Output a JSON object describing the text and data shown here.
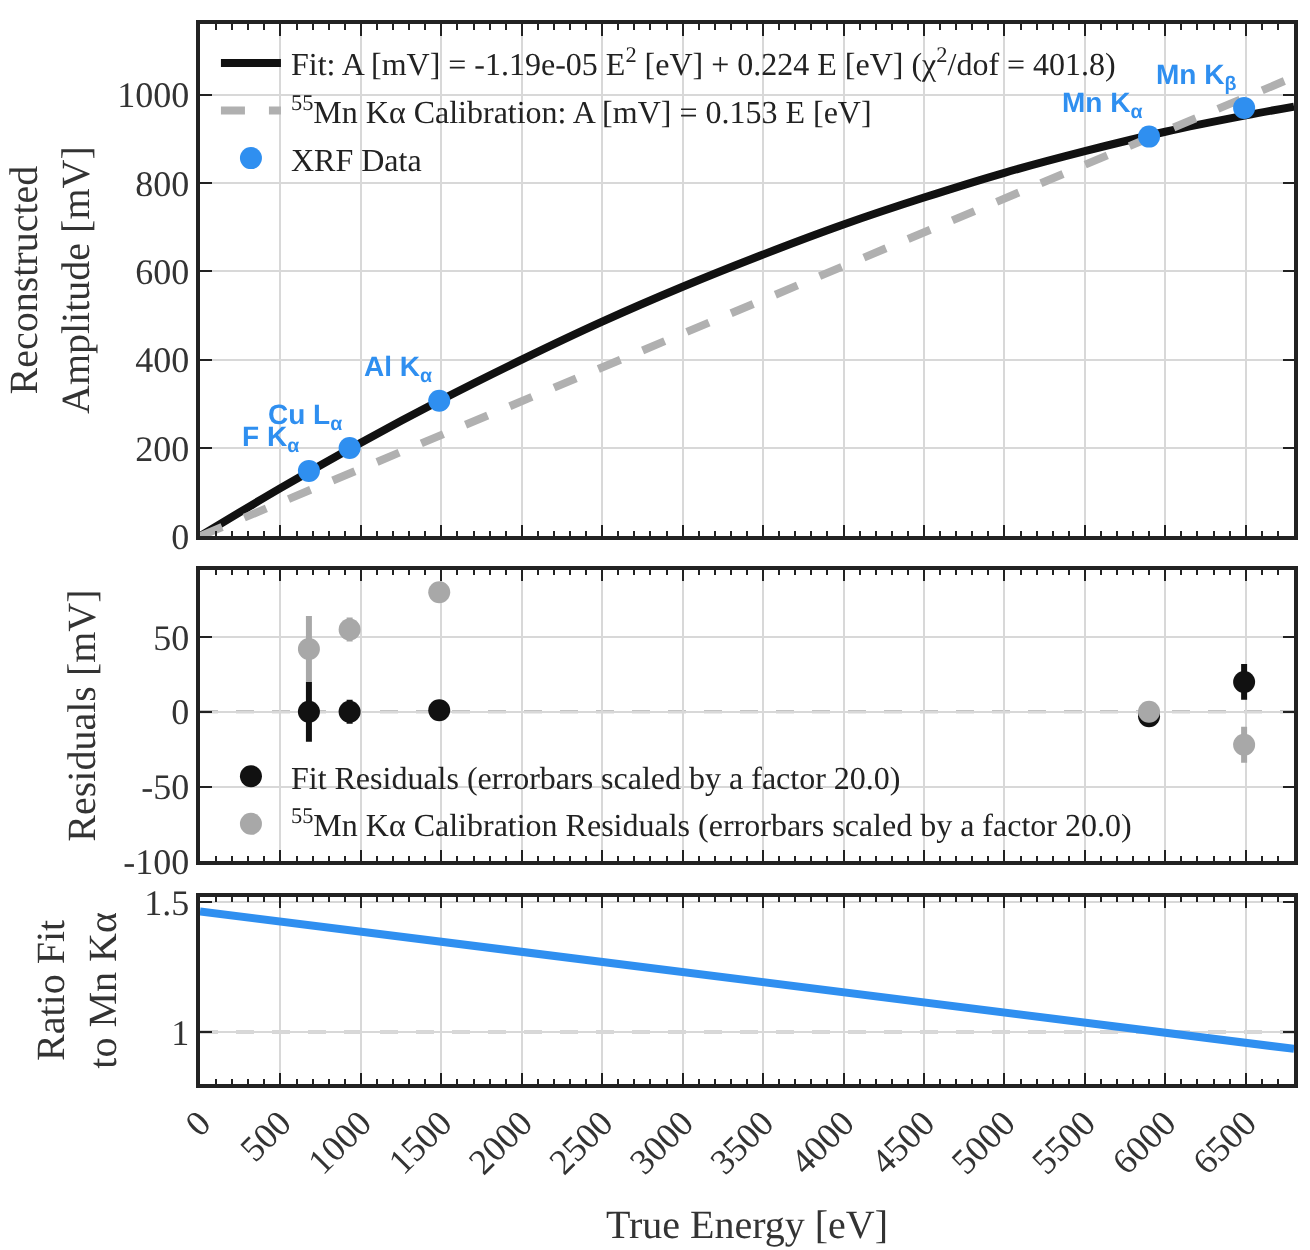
{
  "chart_data": [
    {
      "type": "line",
      "ylabel": "Reconstructed\nAmplitude [mV]",
      "xlim": [
        0,
        6800
      ],
      "xticks": [
        0,
        500,
        1000,
        1500,
        2000,
        2500,
        3000,
        3500,
        4000,
        4500,
        5000,
        5500,
        6000,
        6500
      ],
      "ylim": [
        0,
        1160
      ],
      "yticks": [
        0,
        200,
        400,
        600,
        800,
        1000
      ],
      "tick_labels": "y",
      "grid": true,
      "legend": "top left",
      "series": [
        {
          "name": "Fit: A [mV] = -1.19e-05 E$^{2}$ [eV] + 0.224 E [eV] (χ$^{2}$/dof = 401.8)",
          "type": "line",
          "color": "#111111",
          "line_style": "solid",
          "x": [
            0,
            500,
            1000,
            1500,
            2000,
            2500,
            3000,
            3500,
            4000,
            4500,
            5000,
            5500,
            6000,
            6500,
            6800
          ],
          "values": [
            0,
            109,
            212,
            309,
            400,
            486,
            565,
            638,
            706,
            767,
            823,
            872,
            916,
            953,
            973
          ]
        },
        {
          "name": "$^{55}$Mn Kα Calibration: A [mV] = 0.153 E [eV]",
          "type": "line",
          "color": "#b0b0b0",
          "line_style": "dashed",
          "x": [
            0,
            6800
          ],
          "values": [
            0,
            1040
          ]
        },
        {
          "name": "XRF Data",
          "type": "scatter",
          "color": "#2f8ff0",
          "marker": "circle",
          "x": [
            677,
            930,
            1487,
            5899,
            6490
          ],
          "values": [
            148,
            200,
            307,
            905,
            970
          ]
        }
      ],
      "annotations": [
        {
          "text": "F K$_{α}$",
          "x": 677,
          "y": 148
        },
        {
          "text": "Cu L$_{α}$",
          "x": 930,
          "y": 200
        },
        {
          "text": "Al K$_{α}$",
          "x": 1487,
          "y": 307
        },
        {
          "text": "Mn K$_{α}$",
          "x": 5899,
          "y": 905
        },
        {
          "text": "Mn K$_{β}$",
          "x": 6490,
          "y": 970
        }
      ]
    },
    {
      "type": "scatter",
      "ylabel": "Residuals [mV]",
      "xlim": [
        0,
        6800
      ],
      "xticks": [
        0,
        500,
        1000,
        1500,
        2000,
        2500,
        3000,
        3500,
        4000,
        4500,
        5000,
        5500,
        6000,
        6500
      ],
      "ylim": [
        -100,
        95
      ],
      "yticks": [
        -100,
        -50,
        0,
        50
      ],
      "tick_labels": "y",
      "grid": true,
      "legend": "bottom left",
      "marker": "circle",
      "series": [
        {
          "name": "Fit Residuals (errorbars scaled by a factor 20.0)",
          "color": "#111111",
          "x": [
            677,
            930,
            1487,
            5899,
            6490
          ],
          "values": [
            0,
            0,
            1,
            -3,
            20
          ],
          "errors": [
            20,
            8,
            null,
            null,
            12
          ]
        },
        {
          "name": "$^{55}$Mn Kα Calibration Residuals (errorbars scaled by a factor 20.0)",
          "color": "#a8a8a8",
          "x": [
            677,
            930,
            1487,
            5899,
            6490
          ],
          "values": [
            42,
            55,
            80,
            0,
            -22
          ],
          "errors": [
            22,
            8,
            null,
            null,
            12
          ]
        }
      ],
      "ref_lines": [
        {
          "axis": "y",
          "value": 0,
          "color": "#b0b0b0",
          "line_style": "dashed"
        }
      ]
    },
    {
      "type": "line",
      "xlabel": "True Energy [eV]",
      "ylabel": "Ratio Fit\nto Mn Kα",
      "xlim": [
        0,
        6800
      ],
      "xticks": [
        0,
        500,
        1000,
        1500,
        2000,
        2500,
        3000,
        3500,
        4000,
        4500,
        5000,
        5500,
        6000,
        6500
      ],
      "ylim": [
        0.8,
        1.52
      ],
      "yticks": [
        1,
        1.5
      ],
      "grid": true,
      "series": [
        {
          "color": "#2f8ff0",
          "x": [
            0,
            6800
          ],
          "values": [
            1.464,
            0.935
          ]
        }
      ],
      "ref_lines": [
        {
          "axis": "y",
          "value": 1,
          "color": "#b0b0b0",
          "line_style": "dashed"
        }
      ]
    }
  ]
}
